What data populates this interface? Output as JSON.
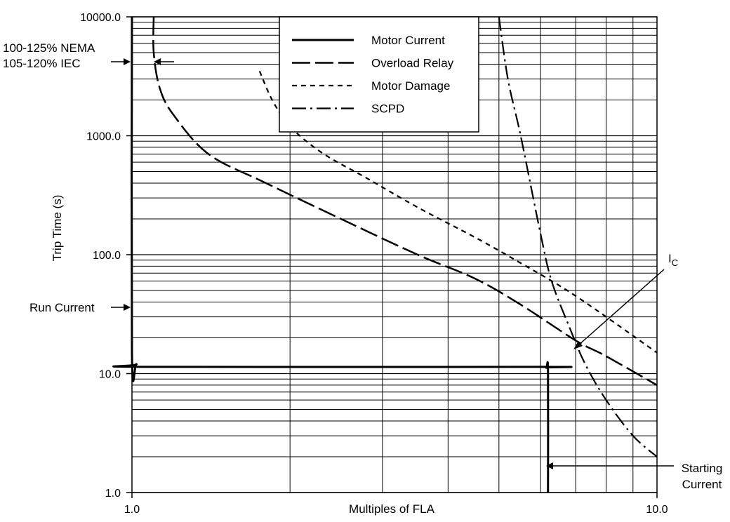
{
  "chart_data": {
    "type": "line",
    "title": "",
    "xlabel": "Multiples of FLA",
    "ylabel": "Trip Time (s)",
    "xscale": "log",
    "yscale": "log",
    "xlim": [
      1.0,
      10.0
    ],
    "ylim": [
      1.0,
      10000.0
    ],
    "grid": true,
    "x_tick_labels": [
      "1.0",
      "10.0"
    ],
    "y_tick_labels": [
      "1.0",
      "10.0",
      "100.0",
      "1000.0",
      "10000.0"
    ],
    "legend_position": "top-center",
    "series": [
      {
        "name": "Motor Current",
        "style": "solid",
        "points": [
          [
            1.0,
            10000
          ],
          [
            1.0,
            15
          ],
          [
            1.02,
            12
          ],
          [
            1.06,
            11.4
          ],
          [
            6.0,
            11.4
          ],
          [
            6.15,
            11.2
          ],
          [
            6.2,
            10.2
          ],
          [
            6.2,
            1.0
          ]
        ]
      },
      {
        "name": "Overload Relay",
        "style": "long-dash",
        "points": [
          [
            1.1,
            10000
          ],
          [
            1.1,
            5000
          ],
          [
            1.13,
            2500
          ],
          [
            1.2,
            1500
          ],
          [
            1.4,
            700
          ],
          [
            1.8,
            400
          ],
          [
            2.5,
            200
          ],
          [
            3.5,
            100
          ],
          [
            4.5,
            63
          ],
          [
            5.5,
            38
          ],
          [
            7.0,
            19
          ],
          [
            8.0,
            14
          ],
          [
            10.0,
            8
          ]
        ]
      },
      {
        "name": "Motor Damage",
        "style": "short-dash",
        "points": [
          [
            1.75,
            3500
          ],
          [
            1.85,
            2000
          ],
          [
            2.0,
            1200
          ],
          [
            2.3,
            720
          ],
          [
            2.8,
            440
          ],
          [
            3.5,
            250
          ],
          [
            4.5,
            140
          ],
          [
            5.5,
            85
          ],
          [
            7.0,
            45
          ],
          [
            10.0,
            15
          ]
        ]
      },
      {
        "name": "SCPD",
        "style": "dash-dot",
        "points": [
          [
            5.0,
            10000
          ],
          [
            5.2,
            3000
          ],
          [
            5.5,
            1000
          ],
          [
            6.0,
            150
          ],
          [
            6.3,
            60
          ],
          [
            6.8,
            25
          ],
          [
            7.3,
            12
          ],
          [
            8.0,
            6
          ],
          [
            9.0,
            3
          ],
          [
            10.0,
            2
          ]
        ]
      }
    ],
    "annotations": [
      {
        "text": "100-125% NEMA",
        "y": 4000
      },
      {
        "text": "105-120% IEC",
        "y": 4000
      },
      {
        "text": "Run Current",
        "y": 40
      },
      {
        "text": "I",
        "subscript": "C",
        "x": 7.0,
        "y": 17
      },
      {
        "text": "Starting Current",
        "x": 6.2,
        "y": 2.1
      }
    ]
  }
}
